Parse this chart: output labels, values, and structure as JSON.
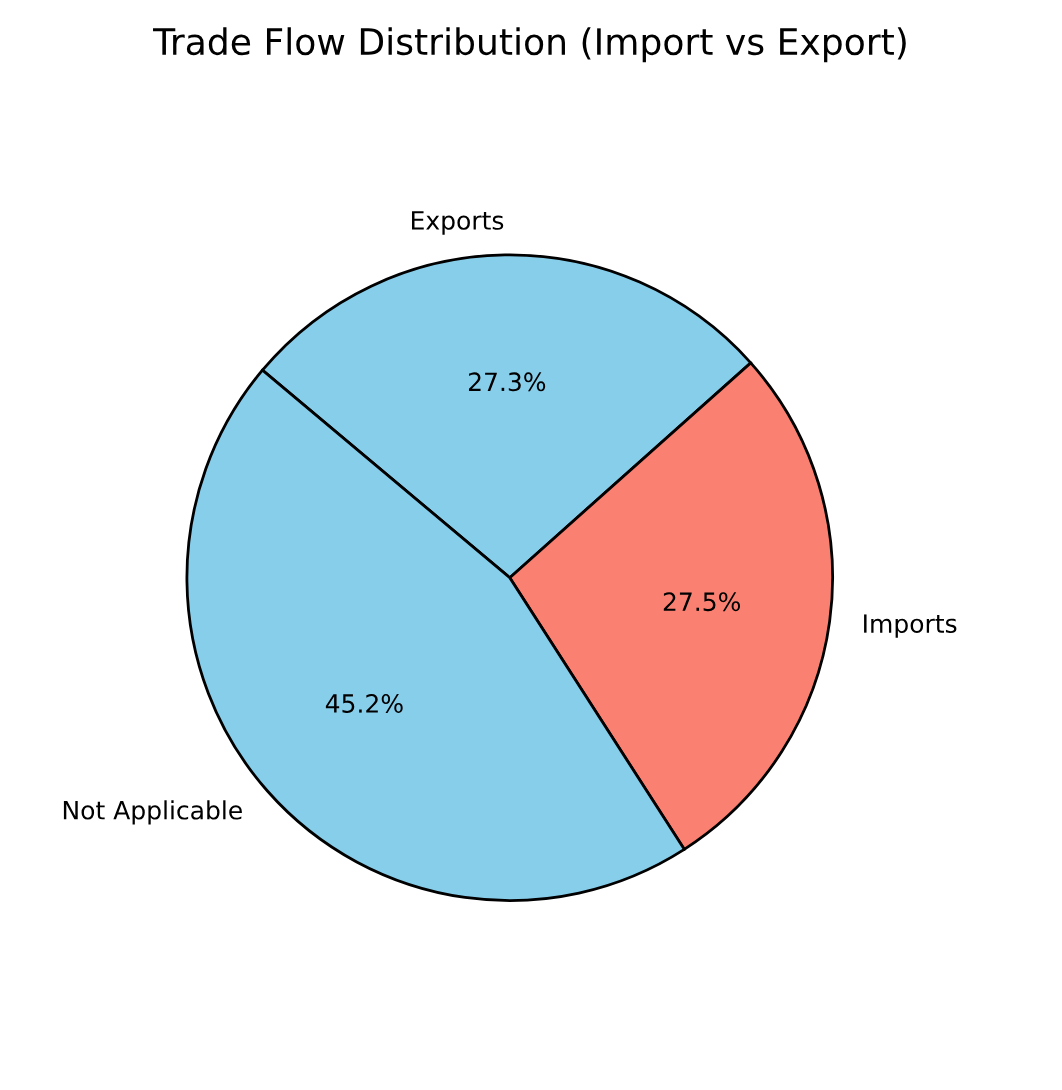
{
  "chart_data": {
    "type": "pie",
    "title": "Trade Flow Distribution (Import vs Export)",
    "categories": [
      "Exports",
      "Imports",
      "Not Applicable"
    ],
    "values": [
      27.3,
      27.5,
      45.2
    ],
    "value_labels": [
      "27.3%",
      "27.5%",
      "45.2%"
    ],
    "colors": [
      "#87ceeb",
      "#fa8072",
      "#87ceeb"
    ]
  }
}
